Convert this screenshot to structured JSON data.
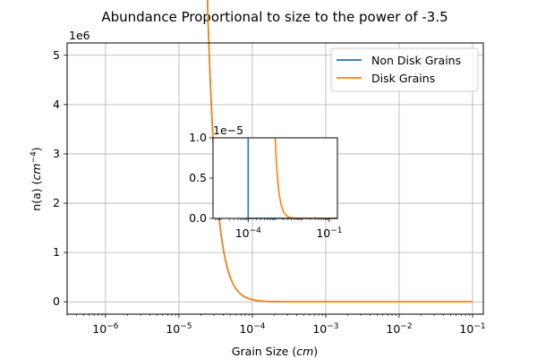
{
  "chart_data": {
    "type": "line",
    "title": "Abundance Proportional to size to the power of -3.5",
    "xlabel_prefix": "Grain Size (",
    "xlabel_unit": "cm",
    "xlabel_suffix": ")",
    "ylabel_prefix": "n(a) (",
    "ylabel_unit": "cm",
    "ylabel_exp": "−4",
    "ylabel_suffix": ")",
    "x_scale": "log",
    "xlim": [
      3e-07,
      0.14
    ],
    "ylim": [
      -0.25,
      5.25
    ],
    "y_multiplier_label": "1e6",
    "yticks": [
      0,
      1,
      2,
      3,
      4,
      5
    ],
    "ytick_labels": [
      "0",
      "1",
      "2",
      "3",
      "4",
      "5"
    ],
    "xtick_exponents": [
      -6,
      -5,
      -4,
      -3,
      -2,
      -1
    ],
    "xtick_base": "10",
    "xtick_exp_labels": [
      "−6",
      "−5",
      "−4",
      "−3",
      "−2",
      "−1"
    ],
    "grid": true,
    "legend_position": "top-right",
    "series": [
      {
        "name": "Non Disk Grains",
        "color": "#1f77b4",
        "x_start": 5e-07,
        "x_end": 0.1,
        "amplitude_at_start": 5000000.0,
        "exponent": -3.5
      },
      {
        "name": "Disk Grains",
        "color": "#ff7f0e",
        "x_start": 5e-07,
        "x_end": 0.1,
        "amplitude_at_start": 5000000.0,
        "exponent": -3.5
      }
    ],
    "inset": {
      "x_scale": "log",
      "y_multiplier_label": "1e−5",
      "yticks": [
        0,
        0.5,
        1
      ],
      "ytick_labels": [
        "0.0",
        "0.5",
        "1.0"
      ],
      "xtick_exponents": [
        -4,
        -1
      ],
      "xtick_exp_labels": [
        "−4",
        "−1"
      ],
      "xlim_log": [
        -5.3,
        -0.7
      ],
      "ylim": [
        0,
        1e-05
      ],
      "non_disk_vertical_x_log": -4.0,
      "disk_curve_start_x_log": -3.0
    }
  }
}
